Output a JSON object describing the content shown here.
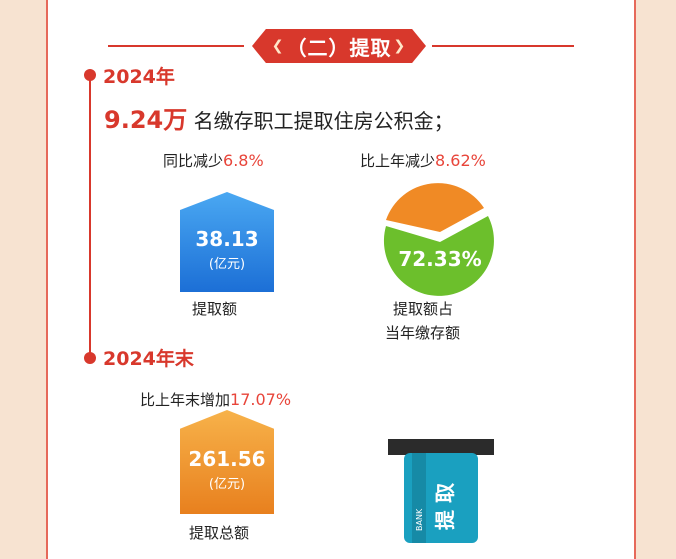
{
  "section": {
    "title": "（二）提取"
  },
  "y2024": {
    "year_label": "2024年",
    "headline_number": "9.24万",
    "headline_text": "名缴存职工提取住房公积金；",
    "withdrawal": {
      "change_label": "同比减少",
      "change_value": "6.8%",
      "amount": "38.13",
      "unit": "(亿元)",
      "caption": "提取额"
    },
    "ratio": {
      "change_label": "比上年减少",
      "change_value": "8.62%",
      "percent": "72.33%",
      "percent_value": 72.33,
      "caption_line1": "提取额占",
      "caption_line2": "当年缴存额"
    }
  },
  "y2024_end": {
    "year_label": "2024年末",
    "change_label": "比上年末增加",
    "change_value": "17.07%",
    "amount": "261.56",
    "unit": "(亿元)",
    "caption": "提取总额",
    "card_label": "BANK",
    "card_text": "提 取"
  },
  "colors": {
    "accent_red": "#d8382c",
    "value_red": "#e8453a",
    "blue": "#1c6fd6",
    "orange": "#e8801e",
    "green": "#6cbf2c",
    "pie_orange": "#f08a25",
    "card_teal": "#1aa0c0"
  },
  "icons": {
    "ratio_chart": "pie-icon",
    "bank_card": "bank-card-icon"
  }
}
